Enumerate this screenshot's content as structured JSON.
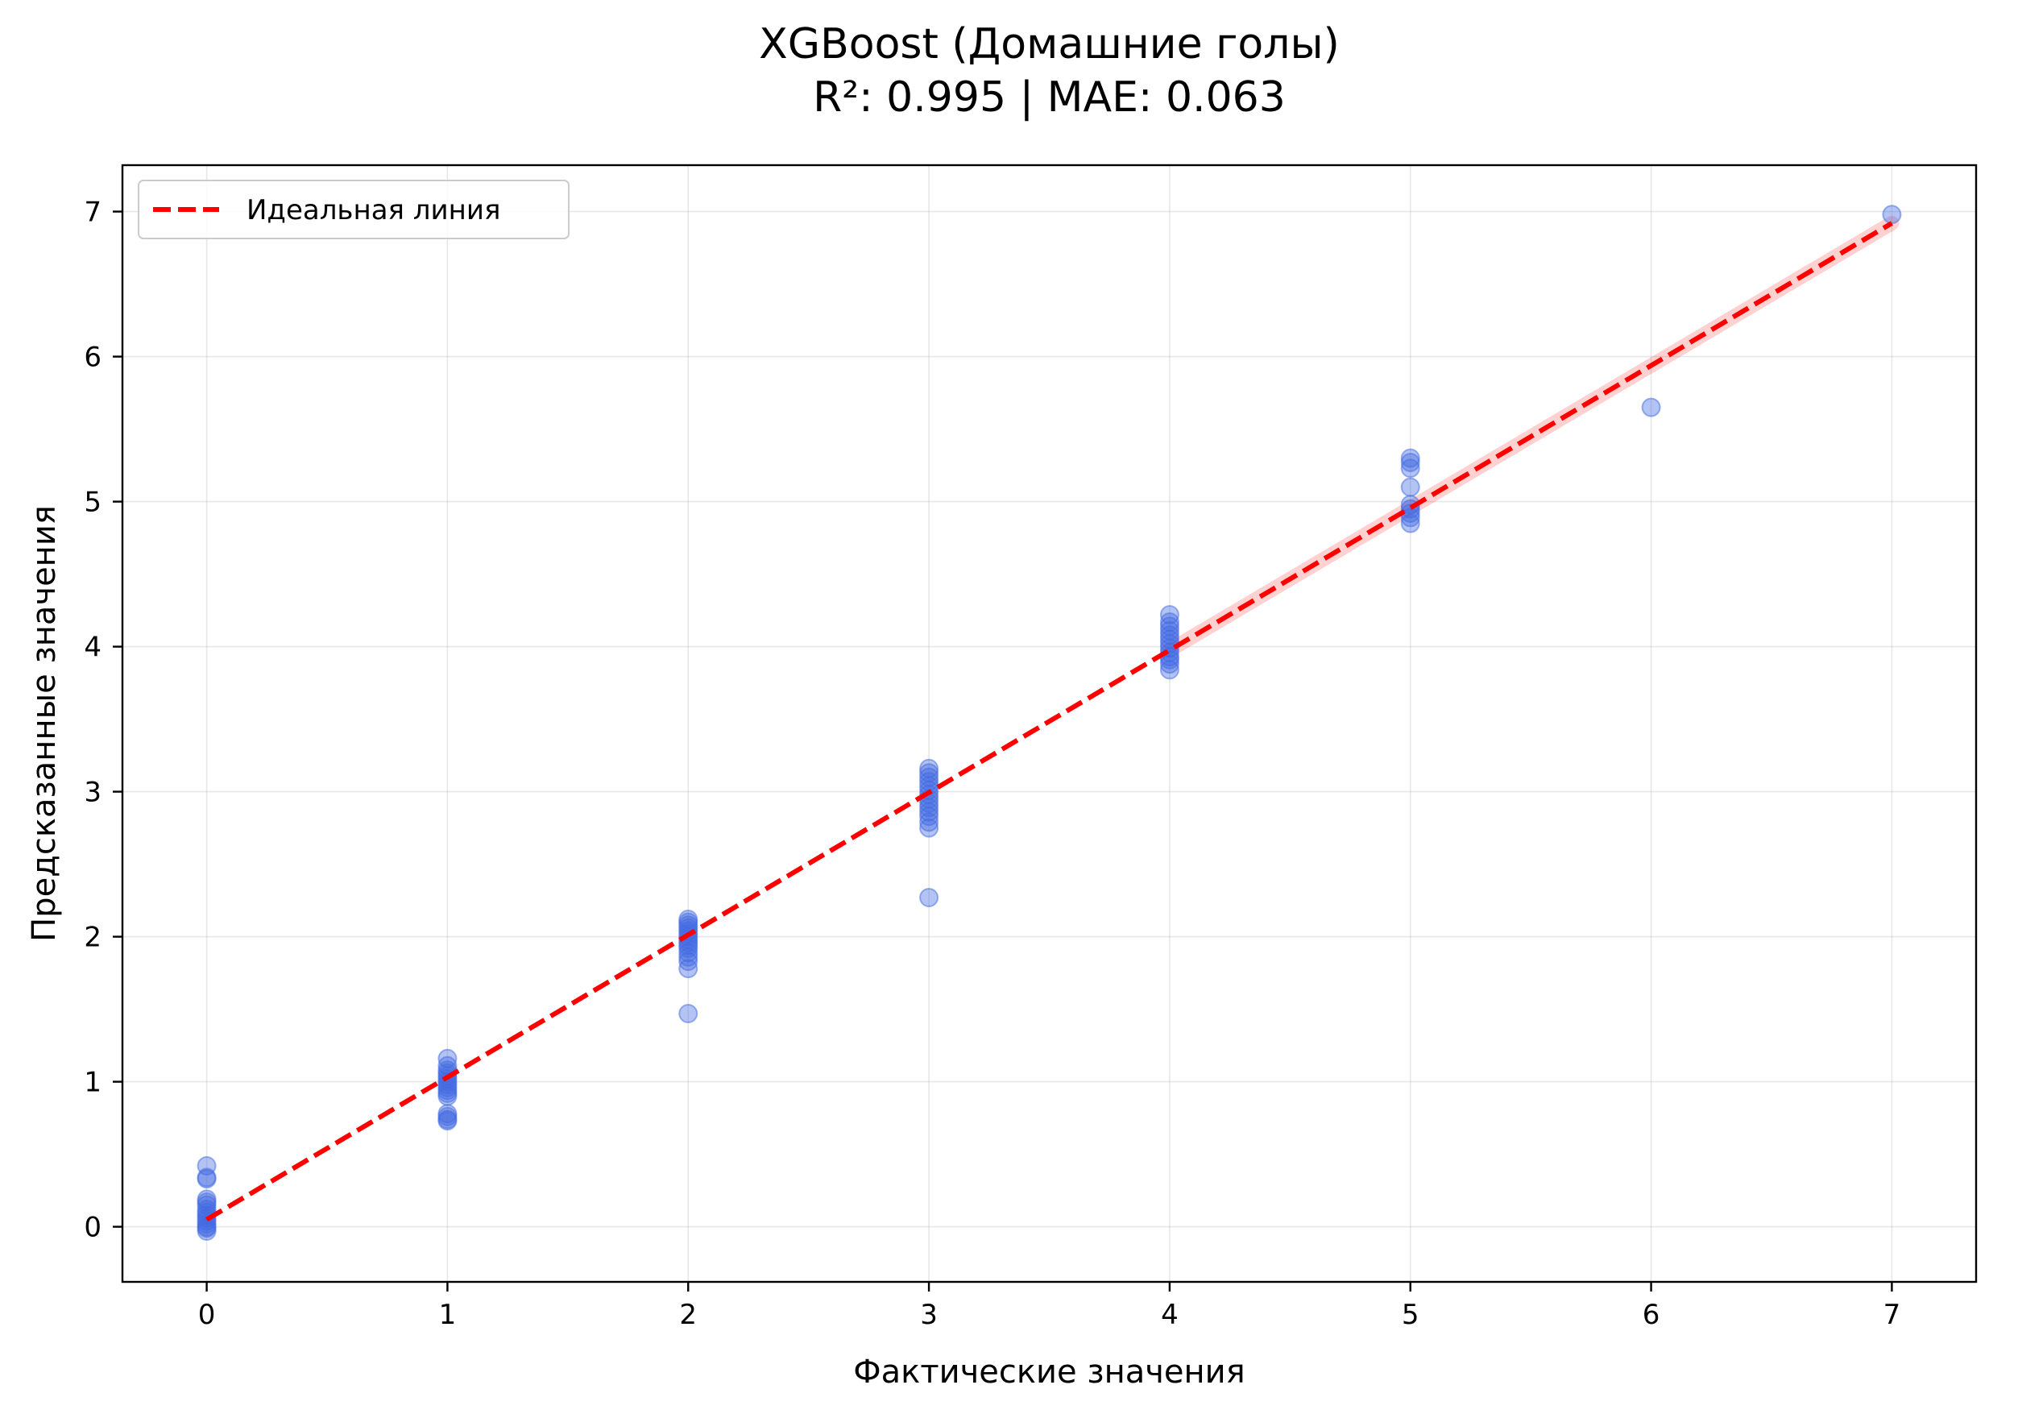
{
  "chart_data": {
    "type": "scatter",
    "title_lines": [
      "XGBoost (Домашние голы)",
      "R²: 0.995 | MAE: 0.063"
    ],
    "xlabel": "Фактические значения",
    "ylabel": "Предсказанные значения",
    "xlim": [
      -0.35,
      7.35
    ],
    "ylim": [
      -0.38,
      7.32
    ],
    "x_ticks": [
      0,
      1,
      2,
      3,
      4,
      5,
      6,
      7
    ],
    "y_ticks": [
      0,
      1,
      2,
      3,
      4,
      5,
      6,
      7
    ],
    "grid": true,
    "legend": {
      "placement": "upper-left",
      "entries": [
        "Идеальная линия"
      ]
    },
    "series": [
      {
        "type": "scatter",
        "color": "#4169e1",
        "points": [
          [
            0,
            0.42
          ],
          [
            0,
            0.34
          ],
          [
            0,
            0.33
          ],
          [
            0,
            0.19
          ],
          [
            0,
            0.17
          ],
          [
            0,
            0.15
          ],
          [
            0,
            0.12
          ],
          [
            0,
            0.1
          ],
          [
            0,
            0.08
          ],
          [
            0,
            0.06
          ],
          [
            0,
            0.04
          ],
          [
            0,
            0.02
          ],
          [
            0,
            0.0
          ],
          [
            0,
            -0.01
          ],
          [
            0,
            -0.03
          ],
          [
            1,
            1.16
          ],
          [
            1,
            1.11
          ],
          [
            1,
            1.08
          ],
          [
            1,
            1.06
          ],
          [
            1,
            1.04
          ],
          [
            1,
            1.02
          ],
          [
            1,
            1.0
          ],
          [
            1,
            0.98
          ],
          [
            1,
            0.96
          ],
          [
            1,
            0.94
          ],
          [
            1,
            0.92
          ],
          [
            1,
            0.9
          ],
          [
            1,
            0.78
          ],
          [
            1,
            0.76
          ],
          [
            1,
            0.74
          ],
          [
            1,
            0.73
          ],
          [
            2,
            2.12
          ],
          [
            2,
            2.1
          ],
          [
            2,
            2.08
          ],
          [
            2,
            2.06
          ],
          [
            2,
            2.04
          ],
          [
            2,
            2.02
          ],
          [
            2,
            2.0
          ],
          [
            2,
            1.98
          ],
          [
            2,
            1.96
          ],
          [
            2,
            1.94
          ],
          [
            2,
            1.92
          ],
          [
            2,
            1.89
          ],
          [
            2,
            1.86
          ],
          [
            2,
            1.83
          ],
          [
            2,
            1.78
          ],
          [
            2,
            1.47
          ],
          [
            3,
            3.16
          ],
          [
            3,
            3.13
          ],
          [
            3,
            3.1
          ],
          [
            3,
            3.07
          ],
          [
            3,
            3.04
          ],
          [
            3,
            3.01
          ],
          [
            3,
            2.98
          ],
          [
            3,
            2.95
          ],
          [
            3,
            2.92
          ],
          [
            3,
            2.89
          ],
          [
            3,
            2.86
          ],
          [
            3,
            2.83
          ],
          [
            3,
            2.79
          ],
          [
            3,
            2.75
          ],
          [
            3,
            2.27
          ],
          [
            4,
            4.22
          ],
          [
            4,
            4.17
          ],
          [
            4,
            4.14
          ],
          [
            4,
            4.11
          ],
          [
            4,
            4.08
          ],
          [
            4,
            4.05
          ],
          [
            4,
            4.02
          ],
          [
            4,
            3.99
          ],
          [
            4,
            3.96
          ],
          [
            4,
            3.93
          ],
          [
            4,
            3.91
          ],
          [
            4,
            3.88
          ],
          [
            4,
            3.84
          ],
          [
            5,
            5.3
          ],
          [
            5,
            5.27
          ],
          [
            5,
            5.23
          ],
          [
            5,
            5.1
          ],
          [
            5,
            4.98
          ],
          [
            5,
            4.95
          ],
          [
            5,
            4.92
          ],
          [
            5,
            4.89
          ],
          [
            5,
            4.85
          ],
          [
            6,
            5.65
          ],
          [
            7,
            6.98
          ]
        ]
      },
      {
        "type": "line",
        "name": "Идеальная линия",
        "color": "#ff0000",
        "style": "dashed",
        "x": [
          0,
          7
        ],
        "y": [
          0.05,
          6.92
        ]
      }
    ]
  }
}
